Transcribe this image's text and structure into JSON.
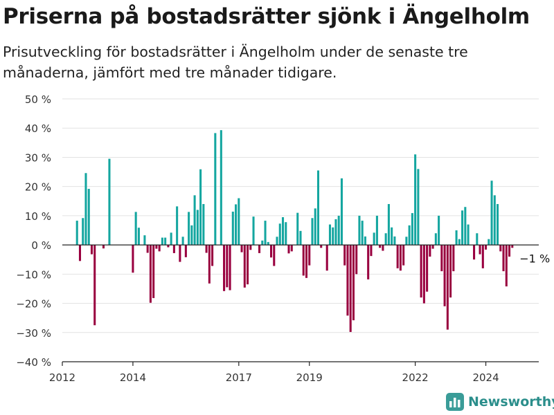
{
  "title": "Priserna på bostadsrätter sjönk i Ängelholm",
  "subtitle": "Prisutveckling för bostadsrätter i Ängelholm under de senaste tre månaderna, jämfört med tre månader tidigare.",
  "brand": {
    "name": "Newsworthy",
    "icon": "bar-chart-logo-icon"
  },
  "colors": {
    "positive": "#14a6a0",
    "negative": "#99003f",
    "grid": "#e2e2e2",
    "axis": "#222222",
    "brand": "#2b8e8b"
  },
  "chart_data": {
    "type": "bar",
    "x_unit": "month",
    "y_unit": "%",
    "ylim": [
      -40,
      50
    ],
    "y_ticks": [
      {
        "value": 50,
        "label": "50 %"
      },
      {
        "value": 40,
        "label": "40 %"
      },
      {
        "value": 30,
        "label": "30 %"
      },
      {
        "value": 20,
        "label": "20 %"
      },
      {
        "value": 10,
        "label": "10 %"
      },
      {
        "value": 0,
        "label": "0 %"
      },
      {
        "value": -10,
        "label": "−10 %"
      },
      {
        "value": -20,
        "label": "−20 %"
      },
      {
        "value": -30,
        "label": "−30 %"
      },
      {
        "value": -40,
        "label": "−40 %"
      }
    ],
    "x_ticks": [
      {
        "date": "2012-01",
        "label": "2012"
      },
      {
        "date": "2014-01",
        "label": "2014"
      },
      {
        "date": "2017-01",
        "label": "2017"
      },
      {
        "date": "2019-01",
        "label": "2019"
      },
      {
        "date": "2022-01",
        "label": "2022"
      },
      {
        "date": "2024-01",
        "label": "2024"
      }
    ],
    "x_range": [
      "2012-01",
      "2025-07"
    ],
    "grid": true,
    "annotation": {
      "date": "2024-12",
      "label": "−1 %"
    },
    "points": [
      {
        "date": "2012-06",
        "value": 8.3
      },
      {
        "date": "2012-07",
        "value": -5.5
      },
      {
        "date": "2012-08",
        "value": 9.2
      },
      {
        "date": "2012-09",
        "value": 24.6
      },
      {
        "date": "2012-10",
        "value": 19.2
      },
      {
        "date": "2012-11",
        "value": -3.2
      },
      {
        "date": "2012-12",
        "value": -27.5
      },
      {
        "date": "2013-03",
        "value": -1.2
      },
      {
        "date": "2013-05",
        "value": 29.5
      },
      {
        "date": "2014-01",
        "value": -9.5
      },
      {
        "date": "2014-02",
        "value": 11.3
      },
      {
        "date": "2014-03",
        "value": 5.9
      },
      {
        "date": "2014-05",
        "value": 3.3
      },
      {
        "date": "2014-06",
        "value": -2.7
      },
      {
        "date": "2014-07",
        "value": -19.8
      },
      {
        "date": "2014-08",
        "value": -18.2
      },
      {
        "date": "2014-09",
        "value": -1.3
      },
      {
        "date": "2014-10",
        "value": -2.2
      },
      {
        "date": "2014-11",
        "value": 2.5
      },
      {
        "date": "2014-12",
        "value": 2.5
      },
      {
        "date": "2015-01",
        "value": -0.8
      },
      {
        "date": "2015-02",
        "value": 4.2
      },
      {
        "date": "2015-03",
        "value": -2.8
      },
      {
        "date": "2015-04",
        "value": 13.2
      },
      {
        "date": "2015-05",
        "value": -5.8
      },
      {
        "date": "2015-06",
        "value": 2.8
      },
      {
        "date": "2015-07",
        "value": -4.2
      },
      {
        "date": "2015-08",
        "value": 11.3
      },
      {
        "date": "2015-09",
        "value": 6.7
      },
      {
        "date": "2015-10",
        "value": 17.0
      },
      {
        "date": "2015-11",
        "value": 12.0
      },
      {
        "date": "2015-12",
        "value": 25.9
      },
      {
        "date": "2016-01",
        "value": 14.0
      },
      {
        "date": "2016-02",
        "value": -2.7
      },
      {
        "date": "2016-03",
        "value": -13.2
      },
      {
        "date": "2016-04",
        "value": -7.2
      },
      {
        "date": "2016-05",
        "value": 38.3
      },
      {
        "date": "2016-07",
        "value": 39.3
      },
      {
        "date": "2016-08",
        "value": -15.8
      },
      {
        "date": "2016-09",
        "value": -14.5
      },
      {
        "date": "2016-10",
        "value": -15.5
      },
      {
        "date": "2016-11",
        "value": 11.4
      },
      {
        "date": "2016-12",
        "value": 13.9
      },
      {
        "date": "2017-01",
        "value": 16.0
      },
      {
        "date": "2017-02",
        "value": -2.5
      },
      {
        "date": "2017-03",
        "value": -14.6
      },
      {
        "date": "2017-04",
        "value": -13.5
      },
      {
        "date": "2017-05",
        "value": -1.7
      },
      {
        "date": "2017-06",
        "value": 9.7
      },
      {
        "date": "2017-08",
        "value": -2.8
      },
      {
        "date": "2017-09",
        "value": 1.5
      },
      {
        "date": "2017-10",
        "value": 8.3
      },
      {
        "date": "2017-11",
        "value": 1.0
      },
      {
        "date": "2017-12",
        "value": -4.3
      },
      {
        "date": "2018-01",
        "value": -7.2
      },
      {
        "date": "2018-02",
        "value": 2.8
      },
      {
        "date": "2018-03",
        "value": 7.3
      },
      {
        "date": "2018-04",
        "value": 9.5
      },
      {
        "date": "2018-05",
        "value": 7.8
      },
      {
        "date": "2018-06",
        "value": -2.9
      },
      {
        "date": "2018-07",
        "value": -2.2
      },
      {
        "date": "2018-09",
        "value": 11.0
      },
      {
        "date": "2018-10",
        "value": 4.8
      },
      {
        "date": "2018-11",
        "value": -10.5
      },
      {
        "date": "2018-12",
        "value": -11.3
      },
      {
        "date": "2019-01",
        "value": -7.0
      },
      {
        "date": "2019-02",
        "value": 9.2
      },
      {
        "date": "2019-03",
        "value": 12.5
      },
      {
        "date": "2019-04",
        "value": 25.5
      },
      {
        "date": "2019-05",
        "value": -1.0
      },
      {
        "date": "2019-07",
        "value": -8.8
      },
      {
        "date": "2019-08",
        "value": 7.0
      },
      {
        "date": "2019-09",
        "value": 6.0
      },
      {
        "date": "2019-10",
        "value": 8.8
      },
      {
        "date": "2019-11",
        "value": 10.0
      },
      {
        "date": "2019-12",
        "value": 22.8
      },
      {
        "date": "2020-01",
        "value": -7.0
      },
      {
        "date": "2020-02",
        "value": -24.2
      },
      {
        "date": "2020-03",
        "value": -29.8
      },
      {
        "date": "2020-04",
        "value": -25.8
      },
      {
        "date": "2020-05",
        "value": -10.0
      },
      {
        "date": "2020-06",
        "value": 10.0
      },
      {
        "date": "2020-07",
        "value": 8.3
      },
      {
        "date": "2020-08",
        "value": 2.9
      },
      {
        "date": "2020-09",
        "value": -11.8
      },
      {
        "date": "2020-10",
        "value": -3.8
      },
      {
        "date": "2020-11",
        "value": 4.2
      },
      {
        "date": "2020-12",
        "value": 10.0
      },
      {
        "date": "2021-01",
        "value": -1.0
      },
      {
        "date": "2021-02",
        "value": -2.0
      },
      {
        "date": "2021-03",
        "value": 4.0
      },
      {
        "date": "2021-04",
        "value": 14.0
      },
      {
        "date": "2021-05",
        "value": 6.0
      },
      {
        "date": "2021-06",
        "value": 2.9
      },
      {
        "date": "2021-07",
        "value": -8.0
      },
      {
        "date": "2021-08",
        "value": -8.8
      },
      {
        "date": "2021-09",
        "value": -7.0
      },
      {
        "date": "2021-10",
        "value": 2.8
      },
      {
        "date": "2021-11",
        "value": 6.7
      },
      {
        "date": "2021-12",
        "value": 10.9
      },
      {
        "date": "2022-01",
        "value": 31.0
      },
      {
        "date": "2022-02",
        "value": 26.0
      },
      {
        "date": "2022-03",
        "value": -18.0
      },
      {
        "date": "2022-04",
        "value": -20.0
      },
      {
        "date": "2022-05",
        "value": -16.0
      },
      {
        "date": "2022-06",
        "value": -4.0
      },
      {
        "date": "2022-07",
        "value": -1.3
      },
      {
        "date": "2022-08",
        "value": 4.0
      },
      {
        "date": "2022-09",
        "value": 10.0
      },
      {
        "date": "2022-10",
        "value": -9.0
      },
      {
        "date": "2022-11",
        "value": -21.0
      },
      {
        "date": "2022-12",
        "value": -29.0
      },
      {
        "date": "2023-01",
        "value": -18.0
      },
      {
        "date": "2023-02",
        "value": -9.0
      },
      {
        "date": "2023-03",
        "value": 5.0
      },
      {
        "date": "2023-04",
        "value": 2.0
      },
      {
        "date": "2023-05",
        "value": 11.8
      },
      {
        "date": "2023-06",
        "value": 13.0
      },
      {
        "date": "2023-07",
        "value": 7.0
      },
      {
        "date": "2023-09",
        "value": -5.0
      },
      {
        "date": "2023-10",
        "value": 4.0
      },
      {
        "date": "2023-11",
        "value": -3.2
      },
      {
        "date": "2023-12",
        "value": -8.0
      },
      {
        "date": "2024-01",
        "value": -1.6
      },
      {
        "date": "2024-02",
        "value": 2.0
      },
      {
        "date": "2024-03",
        "value": 22.0
      },
      {
        "date": "2024-04",
        "value": 17.0
      },
      {
        "date": "2024-05",
        "value": 14.0
      },
      {
        "date": "2024-06",
        "value": -2.2
      },
      {
        "date": "2024-07",
        "value": -9.0
      },
      {
        "date": "2024-08",
        "value": -14.2
      },
      {
        "date": "2024-09",
        "value": -4.0
      },
      {
        "date": "2024-10",
        "value": -1.0
      }
    ]
  }
}
